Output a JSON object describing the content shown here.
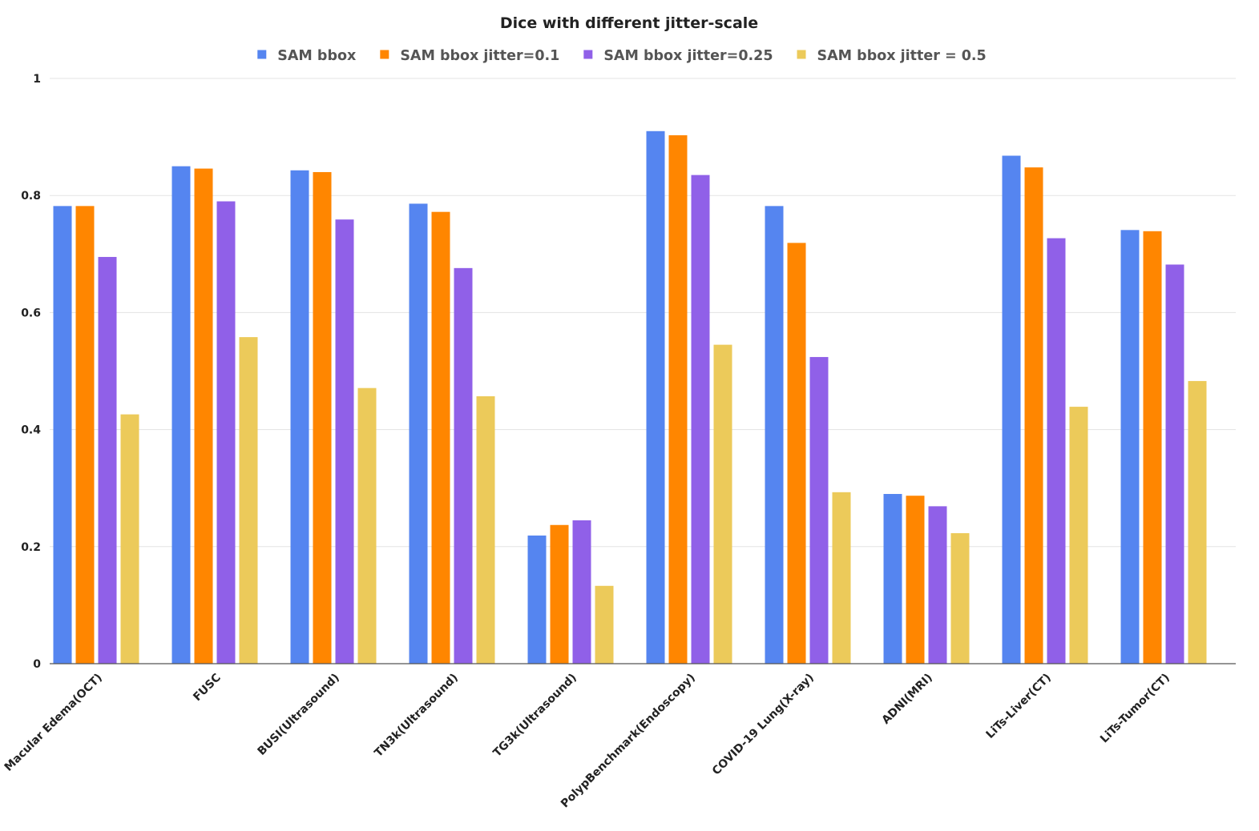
{
  "chart_data": {
    "type": "bar",
    "title": "Dice with different jitter-scale",
    "xlabel": "",
    "ylabel": "",
    "ylim": [
      0,
      1
    ],
    "yticks": [
      "0",
      "0.2",
      "0.4",
      "0.6",
      "0.8",
      "1"
    ],
    "grid": true,
    "legend_position": "top-center",
    "categories": [
      "Macular Edema(OCT)",
      "FUSC",
      "BUSI(Ultrasound)",
      "TN3k(Ultrasound)",
      "TG3k(Ultrasound)",
      "PolypBenchmark(Endoscopy)",
      "COVID-19 Lung(X-ray)",
      "ADNI(MRI)",
      "LiTs-Liver(CT)",
      "LiTs-Tumor(CT)"
    ],
    "series": [
      {
        "name": "SAM bbox",
        "color": "#5585f0",
        "values": [
          0.782,
          0.85,
          0.843,
          0.786,
          0.219,
          0.91,
          0.782,
          0.29,
          0.868,
          0.741
        ]
      },
      {
        "name": "SAM bbox jitter=0.1",
        "color": "#ff8600",
        "values": [
          0.782,
          0.846,
          0.84,
          0.772,
          0.237,
          0.903,
          0.719,
          0.287,
          0.848,
          0.739
        ]
      },
      {
        "name": "SAM bbox jitter=0.25",
        "color": "#9060e8",
        "values": [
          0.695,
          0.79,
          0.759,
          0.676,
          0.245,
          0.835,
          0.524,
          0.269,
          0.727,
          0.682
        ]
      },
      {
        "name": "SAM bbox jitter = 0.5",
        "color": "#ecca5a",
        "values": [
          0.426,
          0.558,
          0.471,
          0.457,
          0.133,
          0.545,
          0.293,
          0.223,
          0.439,
          0.483
        ]
      }
    ]
  }
}
